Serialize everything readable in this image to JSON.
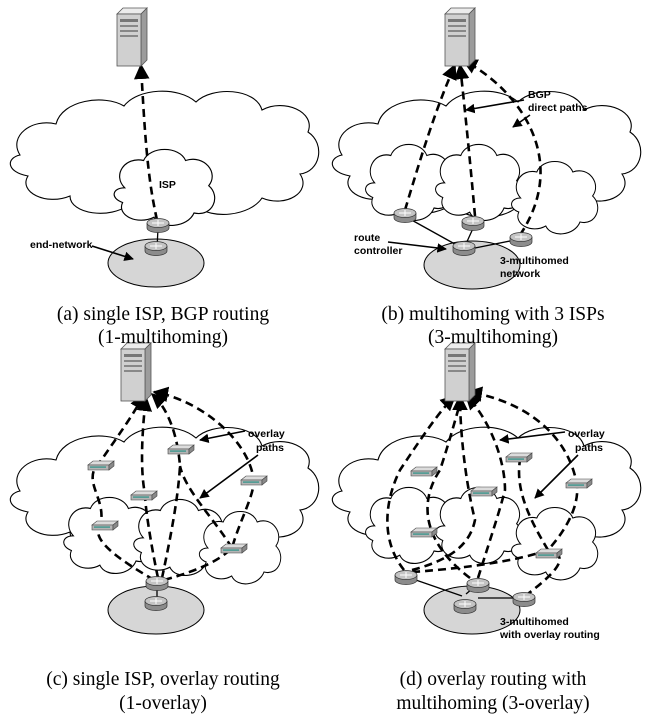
{
  "panels": {
    "a": {
      "caption_line1": "(a) single ISP, BGP routing",
      "caption_line2": "(1-multihoming)",
      "labels": {
        "isp": "ISP",
        "end_network": "end-network"
      }
    },
    "b": {
      "caption_line1": "(b) multihoming with 3 ISPs",
      "caption_line2": "(3-multihoming)",
      "labels": {
        "bgp_line1": "BGP",
        "bgp_line2": "direct paths",
        "route_line1": "route",
        "route_line2": "controller",
        "network_line1": "3-multihomed",
        "network_line2": "network"
      }
    },
    "c": {
      "caption_line1": "(c) single ISP, overlay routing",
      "caption_line2": "(1-overlay)",
      "labels": {
        "overlay_line1": "overlay",
        "overlay_line2": "paths"
      }
    },
    "d": {
      "caption_line1": "(d) overlay routing with",
      "caption_line2": "multihoming (3-overlay)",
      "labels": {
        "overlay_line1": "overlay",
        "overlay_line2": "paths",
        "network_line1": "3-multihomed",
        "network_line2": "with overlay routing"
      }
    }
  },
  "colors": {
    "server_body": "#d0d0d0",
    "router_body": "#9a9a9a",
    "end_network_fill": "#d6d6d6",
    "overlay_node_teal": "#4d9a92"
  }
}
